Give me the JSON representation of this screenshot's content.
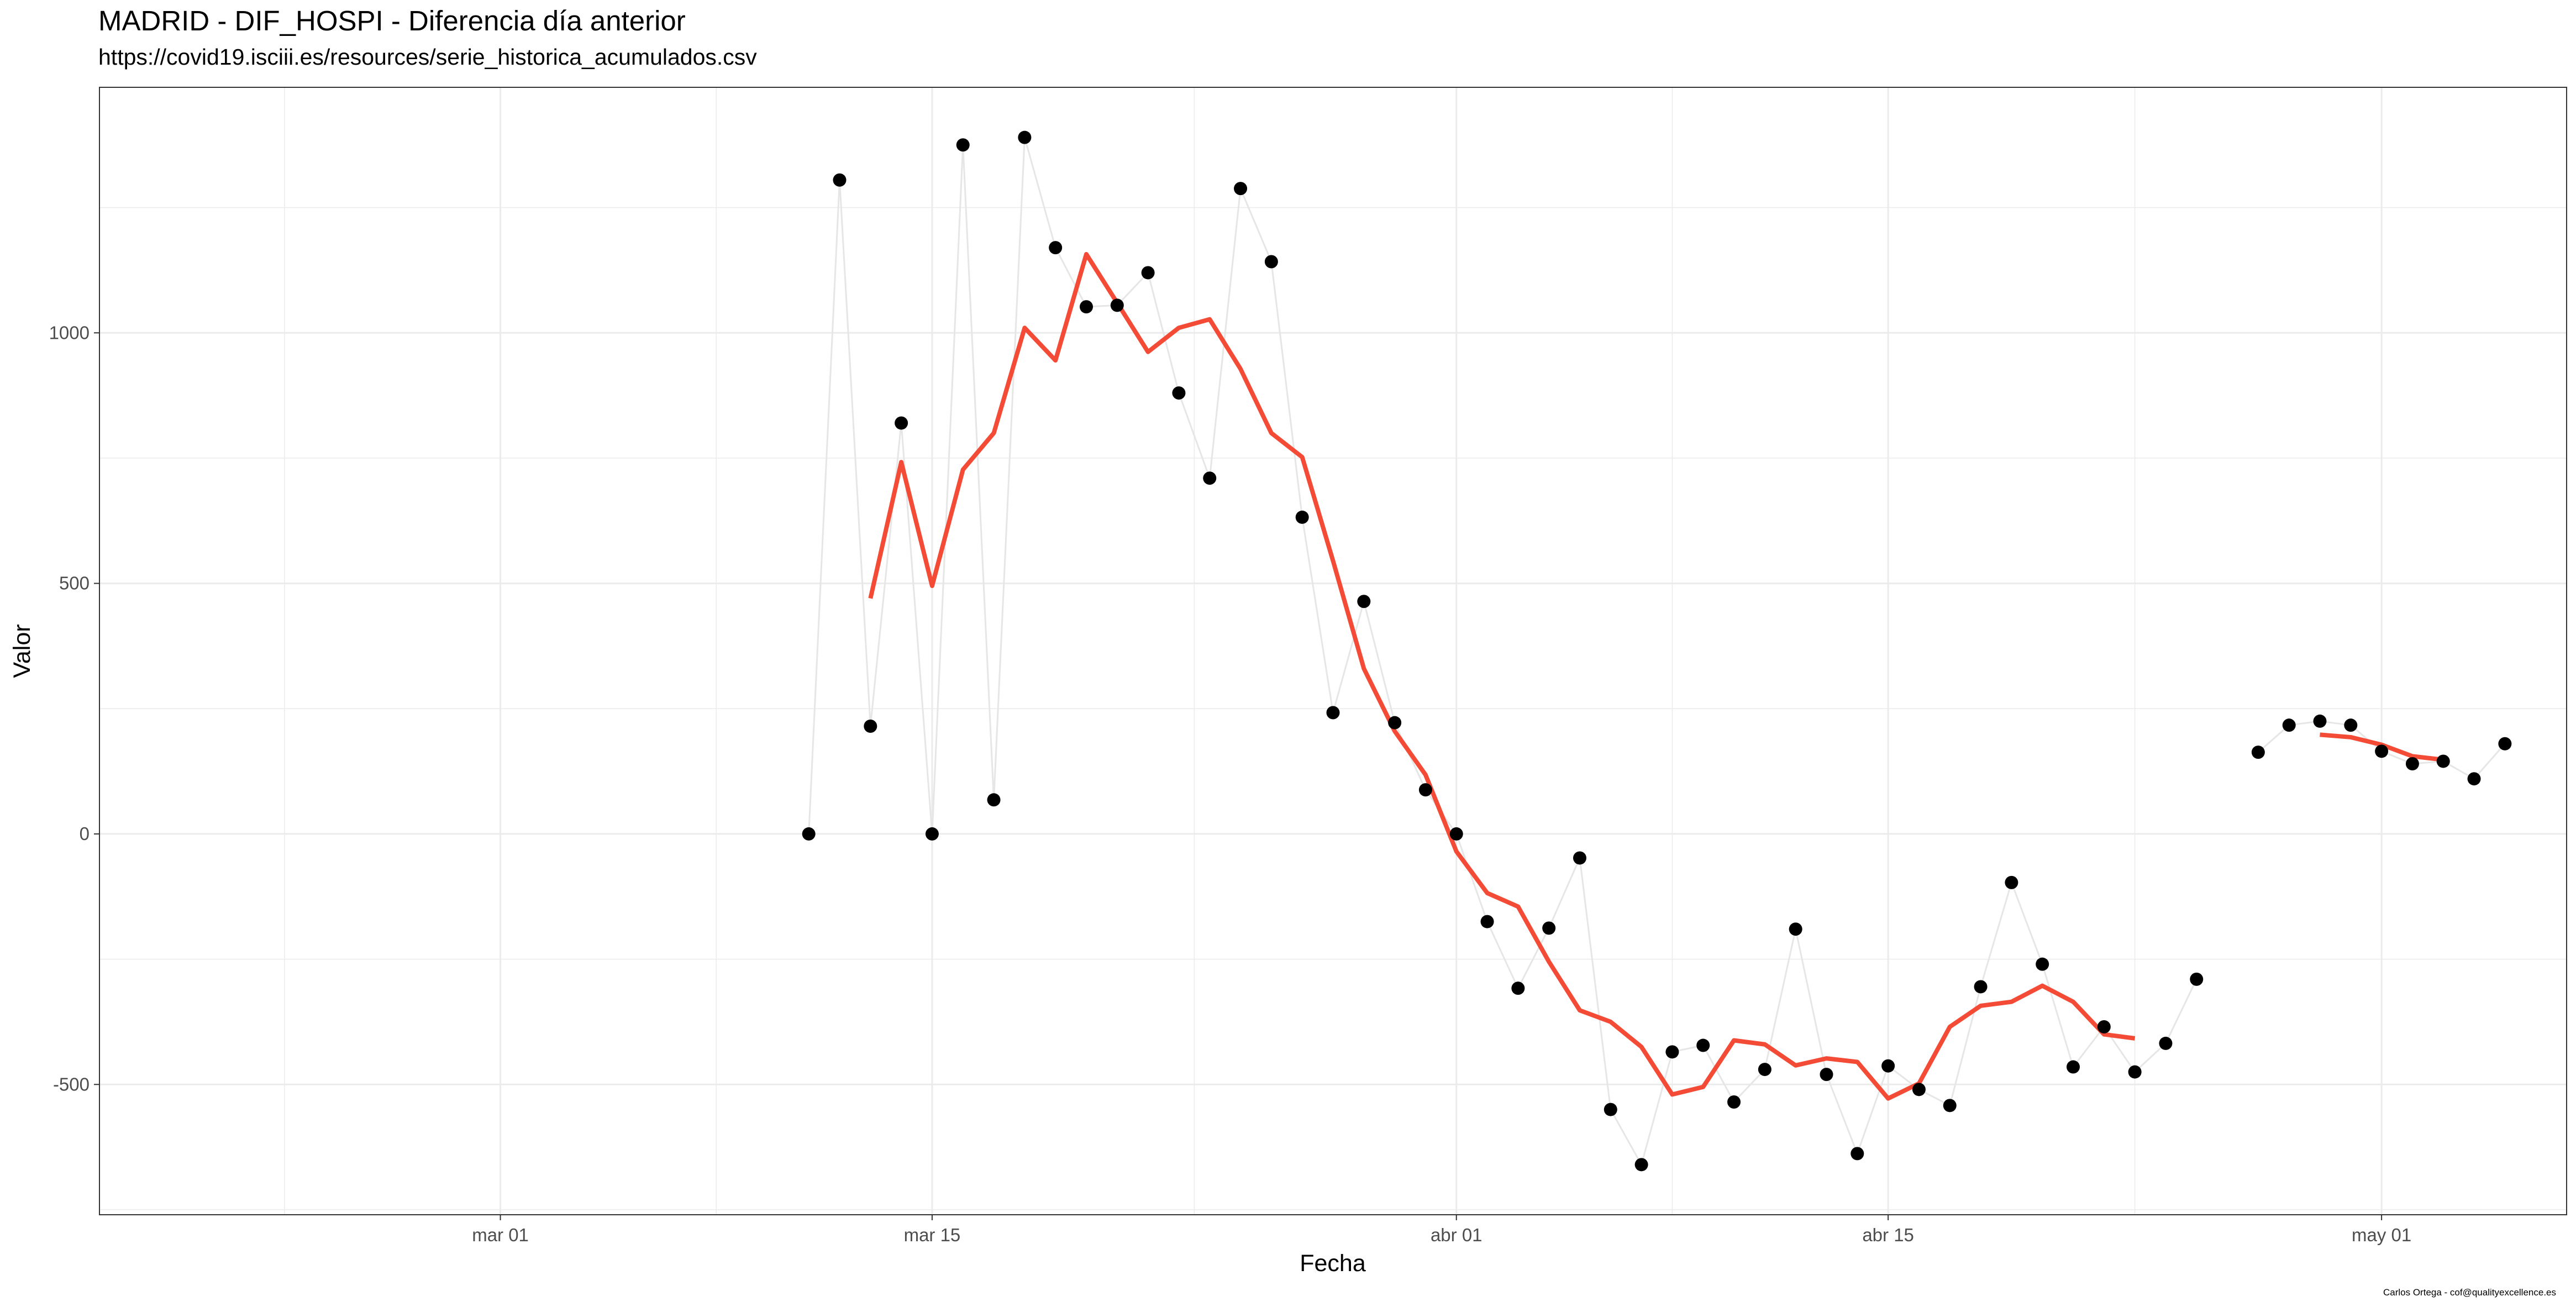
{
  "title": "MADRID - DIF_HOSPI - Diferencia día anterior",
  "subtitle": "https://covid19.isciii.es/resources/serie_historica_acumulados.csv",
  "caption": "Carlos Ortega - cof@qualityexcellence.es",
  "chart_data": {
    "type": "scatter",
    "title": "MADRID - DIF_HOSPI - Diferencia día anterior",
    "subtitle": "https://covid19.isciii.es/resources/serie_historica_acumulados.csv",
    "xlabel": "Fecha",
    "ylabel": "Valor",
    "xlim": [
      "2020-02-17",
      "2020-05-07"
    ],
    "ylim": [
      -760,
      1490
    ],
    "x_ticks": [
      {
        "date": "2020-03-01",
        "label": "mar 01"
      },
      {
        "date": "2020-03-15",
        "label": "mar 15"
      },
      {
        "date": "2020-04-01",
        "label": "abr 01"
      },
      {
        "date": "2020-04-15",
        "label": "abr 15"
      },
      {
        "date": "2020-05-01",
        "label": "may 01"
      }
    ],
    "y_ticks": [
      -500,
      0,
      500,
      1000
    ],
    "grid": true,
    "colors": {
      "points": "#000000",
      "connector": "#e6e6e6",
      "smooth": "#f44b36",
      "grid": "#ebebeb"
    },
    "series": [
      {
        "type": "scatter_line",
        "points": [
          {
            "date": "2020-03-11",
            "value": 0
          },
          {
            "date": "2020-03-12",
            "value": 1305
          },
          {
            "date": "2020-03-13",
            "value": 215
          },
          {
            "date": "2020-03-14",
            "value": 820
          },
          {
            "date": "2020-03-15",
            "value": 0
          },
          {
            "date": "2020-03-16",
            "value": 1375
          },
          {
            "date": "2020-03-17",
            "value": 68
          },
          {
            "date": "2020-03-18",
            "value": 1390
          },
          {
            "date": "2020-03-19",
            "value": 1170
          },
          {
            "date": "2020-03-20",
            "value": 1052
          },
          {
            "date": "2020-03-21",
            "value": 1055
          },
          {
            "date": "2020-03-22",
            "value": 1120
          },
          {
            "date": "2020-03-23",
            "value": 880
          },
          {
            "date": "2020-03-24",
            "value": 710
          },
          {
            "date": "2020-03-25",
            "value": 1288
          },
          {
            "date": "2020-03-26",
            "value": 1142
          },
          {
            "date": "2020-03-27",
            "value": 632
          },
          {
            "date": "2020-03-28",
            "value": 242
          },
          {
            "date": "2020-03-29",
            "value": 464
          },
          {
            "date": "2020-03-30",
            "value": 222
          },
          {
            "date": "2020-03-31",
            "value": 88
          },
          {
            "date": "2020-04-01",
            "value": 0
          },
          {
            "date": "2020-04-02",
            "value": -175
          },
          {
            "date": "2020-04-03",
            "value": -308
          },
          {
            "date": "2020-04-04",
            "value": -188
          },
          {
            "date": "2020-04-05",
            "value": -48
          },
          {
            "date": "2020-04-06",
            "value": -550
          },
          {
            "date": "2020-04-07",
            "value": -660
          },
          {
            "date": "2020-04-08",
            "value": -435
          },
          {
            "date": "2020-04-09",
            "value": -422
          },
          {
            "date": "2020-04-10",
            "value": -535
          },
          {
            "date": "2020-04-11",
            "value": -470
          },
          {
            "date": "2020-04-12",
            "value": -190
          },
          {
            "date": "2020-04-13",
            "value": -480
          },
          {
            "date": "2020-04-14",
            "value": -638
          },
          {
            "date": "2020-04-15",
            "value": -463
          },
          {
            "date": "2020-04-16",
            "value": -510
          },
          {
            "date": "2020-04-17",
            "value": -542
          },
          {
            "date": "2020-04-18",
            "value": -305
          },
          {
            "date": "2020-04-19",
            "value": -97
          },
          {
            "date": "2020-04-20",
            "value": -260
          },
          {
            "date": "2020-04-21",
            "value": -465
          },
          {
            "date": "2020-04-22",
            "value": -385
          },
          {
            "date": "2020-04-23",
            "value": -475
          },
          {
            "date": "2020-04-24",
            "value": -418
          },
          {
            "date": "2020-04-25",
            "value": -290
          },
          {
            "date": "2020-04-27",
            "value": 163
          },
          {
            "date": "2020-04-28",
            "value": 217
          },
          {
            "date": "2020-04-29",
            "value": 225
          },
          {
            "date": "2020-04-30",
            "value": 217
          },
          {
            "date": "2020-05-01",
            "value": 165
          },
          {
            "date": "2020-05-02",
            "value": 140
          },
          {
            "date": "2020-05-03",
            "value": 145
          },
          {
            "date": "2020-05-04",
            "value": 110
          },
          {
            "date": "2020-05-05",
            "value": 180
          }
        ]
      },
      {
        "type": "line",
        "segments": [
          [
            {
              "date": "2020-03-13",
              "value": 470
            },
            {
              "date": "2020-03-14",
              "value": 742
            },
            {
              "date": "2020-03-15",
              "value": 495
            },
            {
              "date": "2020-03-16",
              "value": 727
            },
            {
              "date": "2020-03-17",
              "value": 800
            },
            {
              "date": "2020-03-18",
              "value": 1010
            },
            {
              "date": "2020-03-19",
              "value": 945
            },
            {
              "date": "2020-03-20",
              "value": 1157
            },
            {
              "date": "2020-03-21",
              "value": 1060
            },
            {
              "date": "2020-03-22",
              "value": 962
            },
            {
              "date": "2020-03-23",
              "value": 1010
            },
            {
              "date": "2020-03-24",
              "value": 1027
            },
            {
              "date": "2020-03-25",
              "value": 928
            },
            {
              "date": "2020-03-26",
              "value": 800
            },
            {
              "date": "2020-03-27",
              "value": 752
            },
            {
              "date": "2020-03-28",
              "value": 545
            },
            {
              "date": "2020-03-29",
              "value": 330
            },
            {
              "date": "2020-03-30",
              "value": 205
            },
            {
              "date": "2020-03-31",
              "value": 118
            },
            {
              "date": "2020-04-01",
              "value": -35
            },
            {
              "date": "2020-04-02",
              "value": -118
            },
            {
              "date": "2020-04-03",
              "value": -145
            },
            {
              "date": "2020-04-04",
              "value": -255
            },
            {
              "date": "2020-04-05",
              "value": -352
            },
            {
              "date": "2020-04-06",
              "value": -375
            },
            {
              "date": "2020-04-07",
              "value": -425
            },
            {
              "date": "2020-04-08",
              "value": -520
            },
            {
              "date": "2020-04-09",
              "value": -505
            },
            {
              "date": "2020-04-10",
              "value": -412
            },
            {
              "date": "2020-04-11",
              "value": -420
            },
            {
              "date": "2020-04-12",
              "value": -462
            },
            {
              "date": "2020-04-13",
              "value": -448
            },
            {
              "date": "2020-04-14",
              "value": -455
            },
            {
              "date": "2020-04-15",
              "value": -528
            },
            {
              "date": "2020-04-16",
              "value": -498
            },
            {
              "date": "2020-04-17",
              "value": -385
            },
            {
              "date": "2020-04-18",
              "value": -343
            },
            {
              "date": "2020-04-19",
              "value": -335
            },
            {
              "date": "2020-04-20",
              "value": -303
            },
            {
              "date": "2020-04-21",
              "value": -335
            },
            {
              "date": "2020-04-22",
              "value": -400
            },
            {
              "date": "2020-04-23",
              "value": -408
            }
          ],
          [
            {
              "date": "2020-04-29",
              "value": 198
            },
            {
              "date": "2020-04-30",
              "value": 193
            },
            {
              "date": "2020-05-01",
              "value": 178
            },
            {
              "date": "2020-05-02",
              "value": 155
            },
            {
              "date": "2020-05-03",
              "value": 148
            }
          ]
        ]
      }
    ]
  }
}
